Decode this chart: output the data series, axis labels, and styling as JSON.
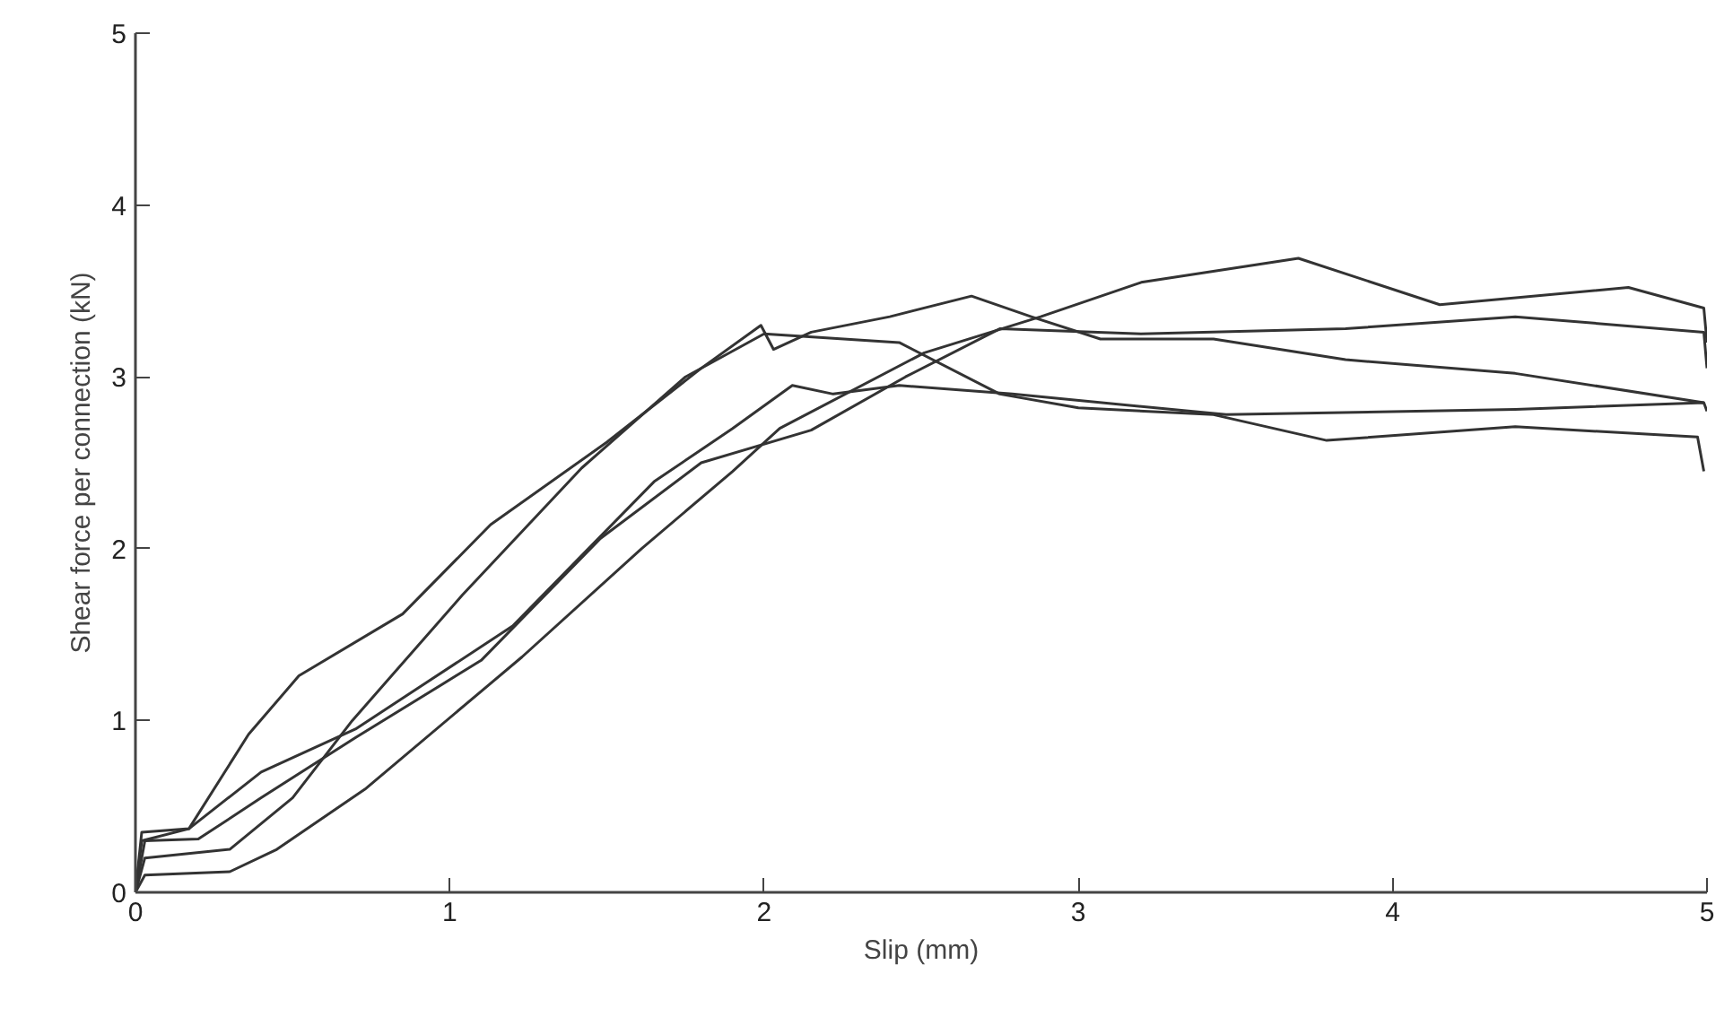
{
  "chart_data": {
    "type": "line",
    "xlabel": "Slip (mm)",
    "ylabel": "Shear force per connection (kN)",
    "xlim": [
      0,
      5
    ],
    "ylim": [
      0,
      5
    ],
    "xticks": [
      0,
      1,
      2,
      3,
      4,
      5
    ],
    "yticks": [
      0,
      1,
      2,
      3,
      4,
      5
    ],
    "marker": "none",
    "line_style": "solid",
    "series": [
      {
        "color": "#333333",
        "x": [
          0,
          0.02,
          0.17,
          0.36,
          0.52,
          0.85,
          1.13,
          1.5,
          1.8,
          1.99,
          2.03,
          2.15,
          2.4,
          2.66,
          2.85,
          3.07,
          3.43,
          3.85,
          4.39,
          4.99
        ],
        "values": [
          0,
          0.3,
          0.37,
          0.92,
          1.26,
          1.62,
          2.14,
          2.62,
          3.05,
          3.3,
          3.16,
          3.26,
          3.35,
          3.47,
          3.35,
          3.22,
          3.22,
          3.1,
          3.02,
          2.85
        ]
      },
      {
        "color": "#333333",
        "x": [
          0,
          0.03,
          0.3,
          0.5,
          0.69,
          1.04,
          1.42,
          1.75,
          2.0,
          2.43,
          2.75,
          3.0,
          3.43,
          3.79,
          4.39,
          4.97,
          4.99
        ],
        "values": [
          0,
          0.2,
          0.25,
          0.55,
          1.0,
          1.73,
          2.47,
          3.0,
          3.25,
          3.2,
          2.9,
          2.82,
          2.78,
          2.63,
          2.71,
          2.65,
          2.45
        ]
      },
      {
        "color": "#333333",
        "x": [
          0,
          0.03,
          0.3,
          0.45,
          0.73,
          1.23,
          1.61,
          1.9,
          2.05,
          2.51,
          2.88,
          3.2,
          3.7,
          4.15,
          4.75,
          4.99,
          5.0
        ],
        "values": [
          0,
          0.1,
          0.12,
          0.25,
          0.6,
          1.37,
          2.0,
          2.45,
          2.7,
          3.14,
          3.35,
          3.55,
          3.69,
          3.42,
          3.52,
          3.4,
          3.2
        ]
      },
      {
        "color": "#333333",
        "x": [
          0,
          0.03,
          0.2,
          0.4,
          0.7,
          1.1,
          1.48,
          1.8,
          2.15,
          2.45,
          2.75,
          3.2,
          3.85,
          4.39,
          4.99,
          5.0
        ],
        "values": [
          0,
          0.3,
          0.31,
          0.55,
          0.9,
          1.35,
          2.06,
          2.5,
          2.69,
          3.0,
          3.28,
          3.25,
          3.28,
          3.35,
          3.26,
          3.05
        ]
      },
      {
        "color": "#333333",
        "x": [
          0,
          0.02,
          0.17,
          0.4,
          0.7,
          1.2,
          1.65,
          1.9,
          2.09,
          2.22,
          2.43,
          2.79,
          3.47,
          4.39,
          4.99,
          5.0
        ],
        "values": [
          0,
          0.35,
          0.37,
          0.7,
          0.95,
          1.55,
          2.39,
          2.7,
          2.95,
          2.9,
          2.95,
          2.9,
          2.78,
          2.81,
          2.85,
          2.8
        ]
      }
    ]
  }
}
